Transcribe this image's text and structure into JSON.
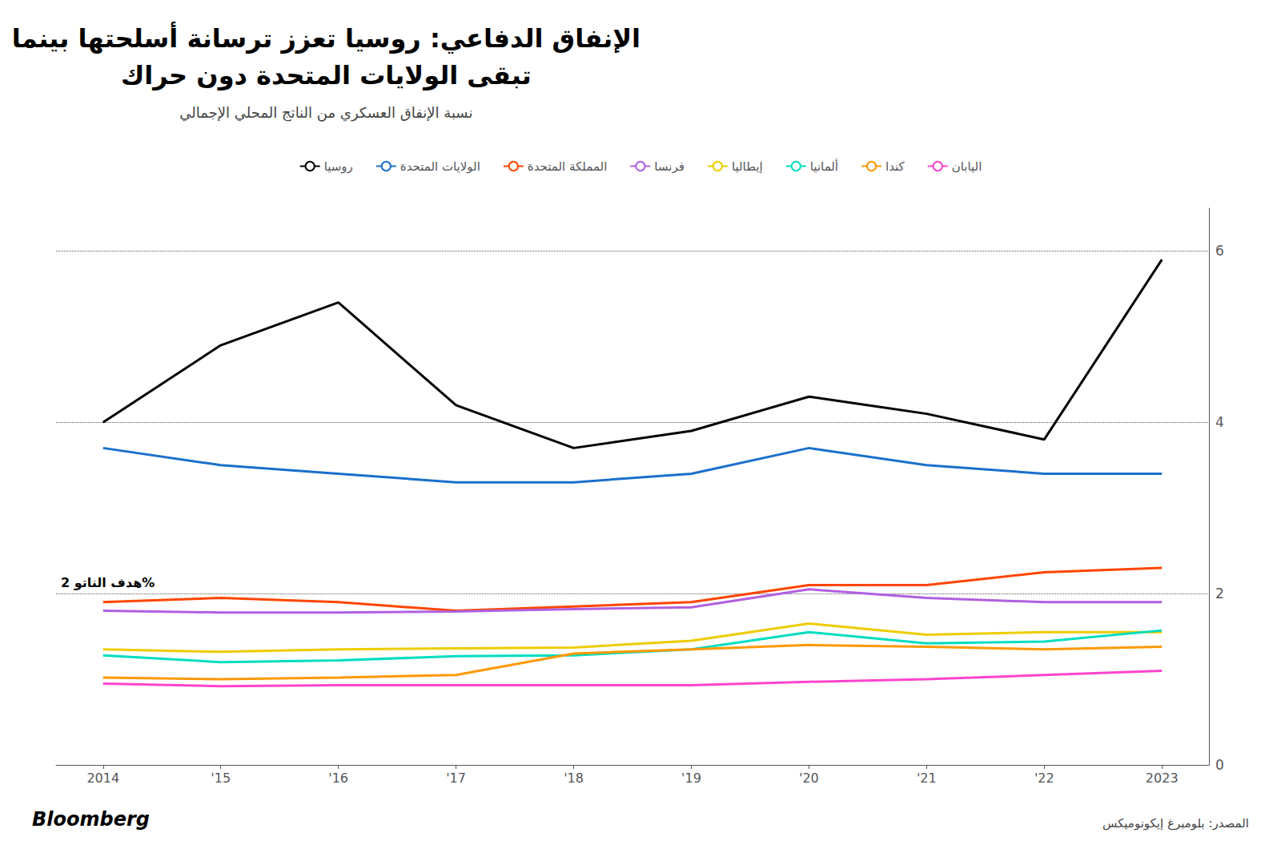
{
  "chart_data": {
    "type": "line",
    "title": "الإنفاق الدفاعي: روسيا تعزز ترسانة أسلحتها بينما\nتبقى الولايات المتحدة دون حراك",
    "subtitle": "نسبة الإنفاق العسكري من الناتج المحلي الإجمالي",
    "annotations": [
      {
        "text": "هدف الناتو 2%",
        "y": 2.0
      },
      {
        "text": "المصدر: بلومبرغ إيكونوميكس"
      },
      {
        "text": "Bloomberg"
      }
    ],
    "x": [
      2014,
      2015,
      2016,
      2017,
      2018,
      2019,
      2020,
      2021,
      2022,
      2023
    ],
    "xlim": [
      2013.6,
      2023.4
    ],
    "xticks": [
      {
        "value": 2014,
        "label": "2014"
      },
      {
        "value": 2015,
        "label": "'15"
      },
      {
        "value": 2016,
        "label": "'16"
      },
      {
        "value": 2017,
        "label": "'17"
      },
      {
        "value": 2018,
        "label": "'18"
      },
      {
        "value": 2019,
        "label": "'19"
      },
      {
        "value": 2020,
        "label": "'20"
      },
      {
        "value": 2021,
        "label": "'21"
      },
      {
        "value": 2022,
        "label": "'22"
      },
      {
        "value": 2023,
        "label": "2023"
      }
    ],
    "ylim": [
      0,
      6.5
    ],
    "yticks": [
      0,
      2,
      4,
      6
    ],
    "grid": true,
    "legend": "top",
    "series": [
      {
        "name": "روسيا",
        "color": "#000000",
        "values": [
          4.0,
          4.9,
          5.4,
          4.2,
          3.7,
          3.9,
          4.3,
          4.1,
          3.8,
          5.9
        ]
      },
      {
        "name": "الولايات المتحدة",
        "color": "#1a6fcc",
        "values": [
          3.7,
          3.5,
          3.4,
          3.3,
          3.3,
          3.4,
          3.7,
          3.5,
          3.4,
          3.4
        ]
      },
      {
        "name": "المملكة المتحدة",
        "color": "#ff4500",
        "values": [
          1.9,
          1.95,
          1.9,
          1.8,
          1.85,
          1.9,
          2.1,
          2.1,
          2.25,
          2.3
        ]
      },
      {
        "name": "فرنسا",
        "color": "#b060e0",
        "values": [
          1.8,
          1.78,
          1.78,
          1.79,
          1.82,
          1.84,
          2.05,
          1.95,
          1.9,
          1.9
        ]
      },
      {
        "name": "إيطاليا",
        "color": "#eecc00",
        "values": [
          1.35,
          1.32,
          1.35,
          1.36,
          1.37,
          1.45,
          1.65,
          1.52,
          1.55,
          1.55
        ]
      },
      {
        "name": "ألمانيا",
        "color": "#00ddc0",
        "values": [
          1.28,
          1.2,
          1.22,
          1.27,
          1.28,
          1.35,
          1.55,
          1.42,
          1.44,
          1.57
        ]
      },
      {
        "name": "كندا",
        "color": "#ff9900",
        "values": [
          1.02,
          1.0,
          1.02,
          1.05,
          1.3,
          1.35,
          1.4,
          1.38,
          1.35,
          1.38
        ]
      },
      {
        "name": "اليابان",
        "color": "#ff44cc",
        "values": [
          0.95,
          0.92,
          0.93,
          0.93,
          0.93,
          0.93,
          0.97,
          1.0,
          1.05,
          1.1
        ]
      }
    ]
  }
}
